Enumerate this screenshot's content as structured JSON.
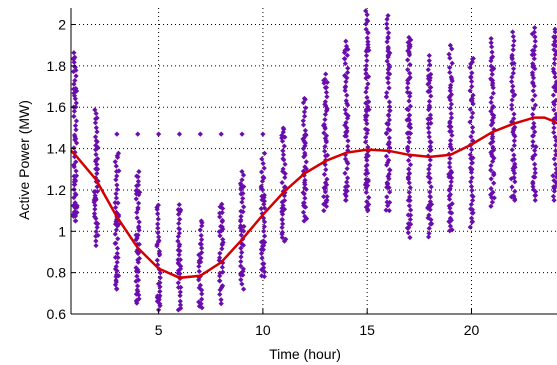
{
  "chart_data": {
    "type": "scatter",
    "title": "",
    "xlabel": "Time (hour)",
    "ylabel": "Active Power (MW)",
    "xlim": [
      0.8,
      24.1
    ],
    "ylim": [
      0.6,
      2.08
    ],
    "grid": true,
    "x_ticks": [
      5,
      10,
      15,
      20
    ],
    "y_ticks": [
      0.6,
      0.8,
      1,
      1.2,
      1.4,
      1.6,
      1.8,
      2
    ],
    "x_tick_labels": [
      "5",
      "10",
      "15",
      "20"
    ],
    "y_tick_labels": [
      "0.6",
      "0.8",
      "1",
      "1.2",
      "1.4",
      "1.6",
      "1.8",
      "2"
    ],
    "colors": {
      "points": "#6a0dad",
      "fit": "#d40000",
      "grid": "#000000"
    },
    "series": [
      {
        "type": "scatter",
        "points_by_hour": [
          {
            "x": 1,
            "min": 1.05,
            "max": 1.87,
            "extra": []
          },
          {
            "x": 2,
            "min": 0.93,
            "max": 1.6,
            "extra": []
          },
          {
            "x": 3,
            "min": 0.72,
            "max": 1.4,
            "extra": [
              1.47
            ]
          },
          {
            "x": 4,
            "min": 0.65,
            "max": 1.3,
            "extra": [
              1.47
            ]
          },
          {
            "x": 5,
            "min": 0.62,
            "max": 1.13,
            "extra": [
              1.47
            ]
          },
          {
            "x": 6,
            "min": 0.62,
            "max": 1.13,
            "extra": [
              1.47
            ]
          },
          {
            "x": 7,
            "min": 0.63,
            "max": 1.05,
            "extra": [
              1.47
            ]
          },
          {
            "x": 8,
            "min": 0.65,
            "max": 1.15,
            "extra": [
              1.47
            ]
          },
          {
            "x": 9,
            "min": 0.72,
            "max": 1.3,
            "extra": [
              1.47
            ]
          },
          {
            "x": 10,
            "min": 0.78,
            "max": 1.38,
            "extra": [
              1.47
            ]
          },
          {
            "x": 11,
            "min": 0.95,
            "max": 1.5,
            "extra": []
          },
          {
            "x": 12,
            "min": 1.05,
            "max": 1.65,
            "extra": []
          },
          {
            "x": 13,
            "min": 1.1,
            "max": 1.78,
            "extra": []
          },
          {
            "x": 14,
            "min": 1.15,
            "max": 1.92,
            "extra": []
          },
          {
            "x": 15,
            "min": 1.1,
            "max": 2.07,
            "extra": []
          },
          {
            "x": 16,
            "min": 1.1,
            "max": 2.05,
            "extra": []
          },
          {
            "x": 17,
            "min": 0.97,
            "max": 1.95,
            "extra": []
          },
          {
            "x": 18,
            "min": 0.97,
            "max": 1.85,
            "extra": []
          },
          {
            "x": 19,
            "min": 1.0,
            "max": 1.9,
            "extra": []
          },
          {
            "x": 20,
            "min": 1.02,
            "max": 1.85,
            "extra": []
          },
          {
            "x": 21,
            "min": 1.12,
            "max": 1.95,
            "extra": []
          },
          {
            "x": 22,
            "min": 1.15,
            "max": 1.97,
            "extra": []
          },
          {
            "x": 23,
            "min": 1.15,
            "max": 2.0,
            "extra": []
          },
          {
            "x": 24,
            "min": 1.15,
            "max": 1.98,
            "extra": []
          }
        ]
      },
      {
        "type": "line",
        "x": [
          0.8,
          1,
          2,
          3,
          4,
          5,
          6,
          7,
          8,
          9,
          10,
          11,
          12,
          13,
          14,
          15,
          16,
          17,
          18,
          19,
          20,
          21,
          22,
          23,
          23.5,
          24,
          24.1
        ],
        "y": [
          1.39,
          1.37,
          1.25,
          1.07,
          0.92,
          0.82,
          0.775,
          0.785,
          0.85,
          0.96,
          1.08,
          1.19,
          1.28,
          1.34,
          1.38,
          1.395,
          1.39,
          1.37,
          1.36,
          1.37,
          1.42,
          1.48,
          1.52,
          1.55,
          1.55,
          1.53,
          1.52
        ]
      }
    ]
  }
}
